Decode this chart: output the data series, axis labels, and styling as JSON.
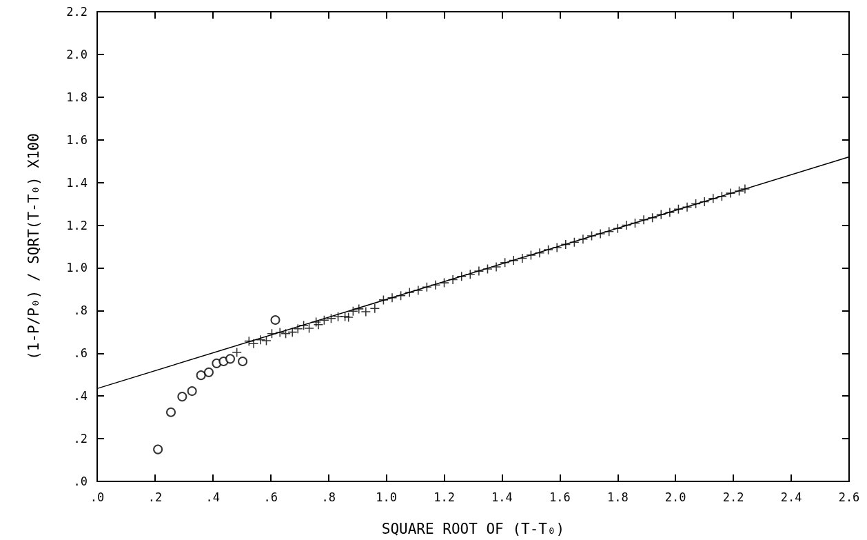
{
  "chart_data": {
    "type": "scatter",
    "xlabel": "SQUARE ROOT OF (T-T₀)",
    "ylabel": "(1-P/P₀) / SQRT(T-T₀) X100",
    "xlim": [
      0,
      2.6
    ],
    "ylim": [
      0,
      2.2
    ],
    "xticks": [
      {
        "value": 0,
        "label": ".0"
      },
      {
        "value": 0.2,
        "label": ".2"
      },
      {
        "value": 0.4,
        "label": ".4"
      },
      {
        "value": 0.6,
        "label": ".6"
      },
      {
        "value": 0.8,
        "label": ".8"
      },
      {
        "value": 1.0,
        "label": "1.0"
      },
      {
        "value": 1.2,
        "label": "1.2"
      },
      {
        "value": 1.4,
        "label": "1.4"
      },
      {
        "value": 1.6,
        "label": "1.6"
      },
      {
        "value": 1.8,
        "label": "1.8"
      },
      {
        "value": 2.0,
        "label": "2.0"
      },
      {
        "value": 2.2,
        "label": "2.2"
      },
      {
        "value": 2.4,
        "label": "2.4"
      },
      {
        "value": 2.6,
        "label": "2.6"
      }
    ],
    "yticks": [
      {
        "value": 0,
        "label": ".0"
      },
      {
        "value": 0.2,
        "label": ".2"
      },
      {
        "value": 0.4,
        "label": ".4"
      },
      {
        "value": 0.6,
        "label": ".6"
      },
      {
        "value": 0.8,
        "label": ".8"
      },
      {
        "value": 1.0,
        "label": "1.0"
      },
      {
        "value": 1.2,
        "label": "1.2"
      },
      {
        "value": 1.4,
        "label": "1.4"
      },
      {
        "value": 1.6,
        "label": "1.6"
      },
      {
        "value": 1.8,
        "label": "1.8"
      },
      {
        "value": 2.0,
        "label": "2.0"
      },
      {
        "value": 2.2,
        "label": "2.2"
      }
    ],
    "grid": false,
    "series": [
      {
        "type": "scatter",
        "marker": "circle",
        "color": "#000000",
        "x": [
          0.21,
          0.255,
          0.294,
          0.328,
          0.359,
          0.386,
          0.413,
          0.437,
          0.46,
          0.503,
          0.616
        ],
        "values": [
          0.15,
          0.324,
          0.397,
          0.423,
          0.497,
          0.511,
          0.553,
          0.562,
          0.574,
          0.562,
          0.756
        ]
      },
      {
        "type": "scatter",
        "marker": "cross",
        "color": "#000000",
        "x": [
          0.483,
          0.525,
          0.541,
          0.565,
          0.585,
          0.604,
          0.632,
          0.652,
          0.675,
          0.694,
          0.714,
          0.733,
          0.757,
          0.765,
          0.785,
          0.809,
          0.833,
          0.857,
          0.869,
          0.885,
          0.905,
          0.929,
          0.96,
          0.99,
          1.02,
          1.05,
          1.08,
          1.11,
          1.14,
          1.17,
          1.2,
          1.23,
          1.26,
          1.29,
          1.32,
          1.35,
          1.38,
          1.41,
          1.44,
          1.47,
          1.5,
          1.53,
          1.56,
          1.59,
          1.62,
          1.65,
          1.68,
          1.71,
          1.74,
          1.77,
          1.8,
          1.83,
          1.86,
          1.89,
          1.92,
          1.95,
          1.98,
          2.01,
          2.04,
          2.07,
          2.1,
          2.13,
          2.16,
          2.19,
          2.22,
          2.24
        ],
        "values": [
          0.604,
          0.657,
          0.645,
          0.663,
          0.659,
          0.692,
          0.698,
          0.692,
          0.699,
          0.715,
          0.731,
          0.717,
          0.746,
          0.734,
          0.755,
          0.763,
          0.771,
          0.772,
          0.769,
          0.797,
          0.808,
          0.795,
          0.81,
          0.85,
          0.86,
          0.87,
          0.885,
          0.895,
          0.91,
          0.92,
          0.93,
          0.945,
          0.96,
          0.97,
          0.985,
          0.995,
          1.005,
          1.025,
          1.035,
          1.045,
          1.06,
          1.07,
          1.085,
          1.095,
          1.11,
          1.12,
          1.135,
          1.15,
          1.16,
          1.17,
          1.185,
          1.2,
          1.21,
          1.225,
          1.235,
          1.25,
          1.26,
          1.275,
          1.285,
          1.3,
          1.31,
          1.325,
          1.335,
          1.35,
          1.36,
          1.37
        ]
      },
      {
        "type": "line",
        "marker": "none",
        "line_style": "solid",
        "color": "#000000",
        "x": [
          0,
          2.6
        ],
        "values": [
          0.435,
          1.52
        ]
      }
    ]
  }
}
